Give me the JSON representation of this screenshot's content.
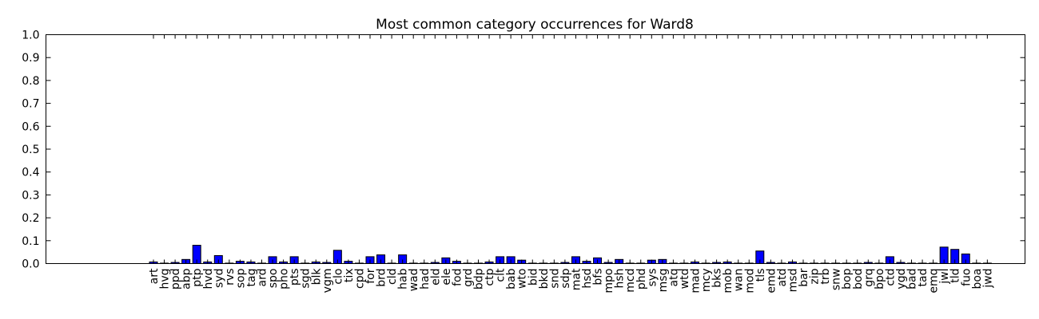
{
  "chart_data": {
    "type": "bar",
    "title": "Most common category occurrences for Ward8",
    "xlabel": "",
    "ylabel": "",
    "ylim": [
      0,
      1.0
    ],
    "yticks": [
      "0.0",
      "0.1",
      "0.2",
      "0.3",
      "0.4",
      "0.5",
      "0.6",
      "0.7",
      "0.8",
      "0.9",
      "1.0"
    ],
    "grid": false,
    "bar_color": "#0000ff",
    "categories": [
      "art",
      "hvg",
      "ppd",
      "abp",
      "ptp",
      "hvd",
      "syd",
      "rvs",
      "sop",
      "tag",
      "ard",
      "spo",
      "pho",
      "pts",
      "sgd",
      "blk",
      "vgm",
      "clo",
      "tix",
      "cpd",
      "for",
      "brd",
      "cld",
      "hab",
      "wad",
      "had",
      "eld",
      "ele",
      "fod",
      "grd",
      "bdp",
      "ctp",
      "clt",
      "bab",
      "wto",
      "bid",
      "bkd",
      "snd",
      "sdp",
      "mat",
      "hsd",
      "bfs",
      "mpo",
      "hsh",
      "mcd",
      "phd",
      "sys",
      "msg",
      "atq",
      "wtd",
      "mad",
      "mcy",
      "bks",
      "mob",
      "wan",
      "mod",
      "tls",
      "emd",
      "atd",
      "msd",
      "bar",
      "zip",
      "trb",
      "snw",
      "bop",
      "bod",
      "grq",
      "bpo",
      "ctd",
      "ygd",
      "bad",
      "tad",
      "emq",
      "jwl",
      "tld",
      "fuo",
      "boa",
      "jwd"
    ],
    "values": [
      0.007,
      0.002,
      0.005,
      0.018,
      0.08,
      0.007,
      0.035,
      0.002,
      0.01,
      0.007,
      0.002,
      0.03,
      0.007,
      0.03,
      0.002,
      0.007,
      0.005,
      0.058,
      0.01,
      0.002,
      0.03,
      0.038,
      0.002,
      0.038,
      0.002,
      0.002,
      0.005,
      0.025,
      0.01,
      0.002,
      0.002,
      0.007,
      0.03,
      0.03,
      0.015,
      0.002,
      0.002,
      0.002,
      0.005,
      0.03,
      0.01,
      0.025,
      0.005,
      0.018,
      0.002,
      0.002,
      0.015,
      0.018,
      0.002,
      0.002,
      0.007,
      0.002,
      0.005,
      0.007,
      0.002,
      0.002,
      0.055,
      0.005,
      0.002,
      0.007,
      0.002,
      0.002,
      0.002,
      0.002,
      0.002,
      0.002,
      0.005,
      0.002,
      0.03,
      0.005,
      0.002,
      0.002,
      0.002,
      0.072,
      0.062,
      0.042,
      0.002,
      0.002
    ]
  }
}
